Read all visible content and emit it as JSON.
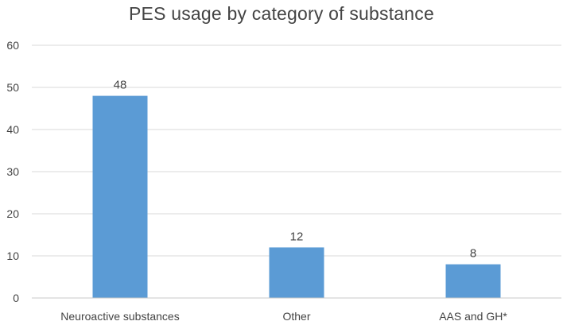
{
  "chart_data": {
    "type": "bar",
    "title": "PES usage by category of substance",
    "categories": [
      "Neuroactive substances",
      "Other",
      "AAS and GH*"
    ],
    "values": [
      48,
      12,
      8
    ],
    "data_labels": [
      "48",
      "12",
      "8"
    ],
    "y_ticks": [
      "0",
      "10",
      "20",
      "30",
      "40",
      "50",
      "60"
    ],
    "ylim": [
      0,
      60
    ],
    "grid": true,
    "xlabel": "",
    "ylabel": "",
    "bar_color": "#5B9BD5",
    "grid_color": "#D9D9D9"
  }
}
